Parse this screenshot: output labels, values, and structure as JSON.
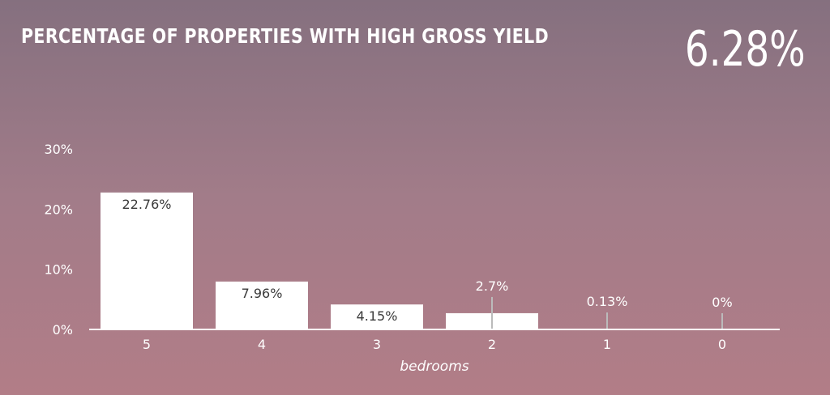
{
  "header": {
    "title": "PERCENTAGE OF PROPERTIES WITH HIGH GROSS YIELD",
    "headline_value": "6.28%"
  },
  "colors": {
    "bar": "#ffffff",
    "axis": "#ffffff",
    "label_inside": "#3a3a3a",
    "label_outside": "#ffffff",
    "leader_line": "#bbbbbb"
  },
  "chart_data": {
    "type": "bar",
    "categories": [
      "5",
      "4",
      "3",
      "2",
      "1",
      "0"
    ],
    "values": [
      22.76,
      7.96,
      4.15,
      2.7,
      0.13,
      0
    ],
    "data_labels": [
      "22.76%",
      "7.96%",
      "4.15%",
      "2.7%",
      "0.13%",
      "0%"
    ],
    "xlabel": "bedrooms",
    "ylabel": "",
    "ylim": [
      0,
      30
    ],
    "yticks": [
      0,
      10,
      20,
      30
    ],
    "ytick_labels": [
      "0%",
      "10%",
      "20%",
      "30%"
    ],
    "grid": false,
    "legend": "none"
  }
}
